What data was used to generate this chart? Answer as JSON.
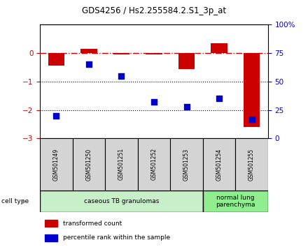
{
  "title": "GDS4256 / Hs2.255584.2.S1_3p_at",
  "samples": [
    "GSM501249",
    "GSM501250",
    "GSM501251",
    "GSM501252",
    "GSM501253",
    "GSM501254",
    "GSM501255"
  ],
  "transformed_count": [
    -0.45,
    0.15,
    -0.05,
    -0.05,
    -0.55,
    0.35,
    -2.6
  ],
  "percentile_rank_pct": [
    20,
    65,
    55,
    32,
    28,
    35,
    17
  ],
  "ylim_left": [
    -3,
    1
  ],
  "ylim_right": [
    0,
    100
  ],
  "yticks_left": [
    -3,
    -2,
    -1,
    0
  ],
  "yticks_right": [
    0,
    25,
    50,
    75,
    100
  ],
  "ytick_right_labels": [
    "0",
    "25",
    "50",
    "75",
    "100%"
  ],
  "cell_type_groups": [
    {
      "label": "caseous TB granulomas",
      "samples": [
        0,
        1,
        2,
        3,
        4
      ],
      "color": "#c8f0c8"
    },
    {
      "label": "normal lung\nparenchyma",
      "samples": [
        5,
        6
      ],
      "color": "#90ee90"
    }
  ],
  "bar_color": "#cc0000",
  "dot_color": "#0000cc",
  "bar_width": 0.5,
  "dot_size": 40,
  "legend_items": [
    {
      "label": "transformed count",
      "color": "#cc0000"
    },
    {
      "label": "percentile rank within the sample",
      "color": "#0000cc"
    }
  ],
  "cell_type_label": "cell type",
  "arrow_label": "▶"
}
